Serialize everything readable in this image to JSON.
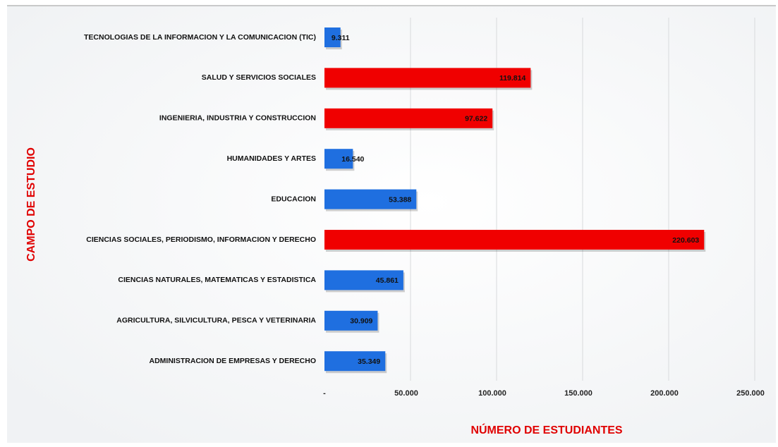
{
  "chart_data": {
    "type": "barh",
    "categories": [
      "TECNOLOGIAS DE LA INFORMACION Y LA COMUNICACION (TIC)",
      "SALUD Y SERVICIOS SOCIALES",
      "INGENIERIA, INDUSTRIA Y CONSTRUCCION",
      "HUMANIDADES Y ARTES",
      "EDUCACION",
      "CIENCIAS SOCIALES, PERIODISMO, INFORMACION Y DERECHO",
      "CIENCIAS NATURALES, MATEMATICAS Y ESTADISTICA",
      "AGRICULTURA, SILVICULTURA, PESCA Y VETERINARIA",
      "ADMINISTRACION DE EMPRESAS Y DERECHO"
    ],
    "values": [
      9311,
      119814,
      97622,
      16540,
      53388,
      220603,
      45861,
      30909,
      35349
    ],
    "value_labels": [
      "9.311",
      "119.814",
      "97.622",
      "16.540",
      "53.388",
      "220.603",
      "45.861",
      "30.909",
      "35.349"
    ],
    "colors": [
      "#1f6fe0",
      "#f00000",
      "#f00000",
      "#1f6fe0",
      "#1f6fe0",
      "#f00000",
      "#1f6fe0",
      "#1f6fe0",
      "#1f6fe0"
    ],
    "xlim": [
      0,
      250000
    ],
    "xticks": [
      {
        "value": 0,
        "label": "-"
      },
      {
        "value": 50000,
        "label": "50.000"
      },
      {
        "value": 100000,
        "label": "100.000"
      },
      {
        "value": 150000,
        "label": "150.000"
      },
      {
        "value": 200000,
        "label": "200.000"
      },
      {
        "value": 250000,
        "label": "250.000"
      }
    ],
    "xlabel": "NÚMERO DE ESTUDIANTES",
    "ylabel": "CAMPO DE ESTUDIO",
    "grid": true
  }
}
